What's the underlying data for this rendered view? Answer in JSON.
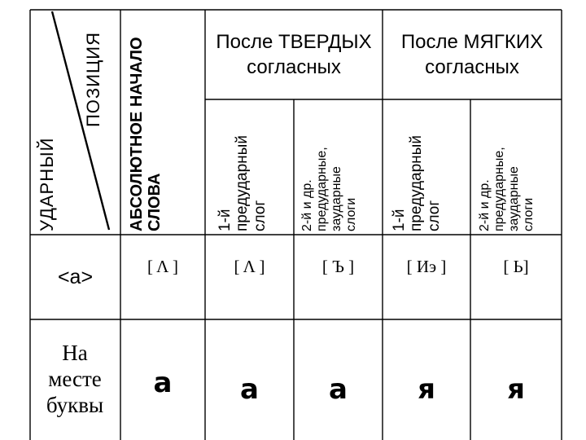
{
  "corner": {
    "top_label": "ПОЗИЦИЯ",
    "bottom_label": "УДАРНЫЙ"
  },
  "headers": {
    "absolute_start": "АБСОЛЮТНОЕ НАЧАЛО\nСЛОВА",
    "after_hard": "После ТВЕРДЫХ согласных",
    "after_soft": "После МЯГКИХ согласных",
    "first_pretonic": "1-й\nпредударный\nслог",
    "other_positions": "2-й и др.\nпредударные,\nзаударные\nслоги"
  },
  "row_phoneme": {
    "label": "<а>",
    "cells": [
      "[ Λ ]",
      "[ Λ ]",
      "[ Ъ ]",
      "[ Иэ ]",
      "[ Ь]"
    ]
  },
  "row_letter": {
    "label": "На месте буквы",
    "cells": [
      "а",
      "а",
      "а",
      "я",
      "я"
    ]
  }
}
